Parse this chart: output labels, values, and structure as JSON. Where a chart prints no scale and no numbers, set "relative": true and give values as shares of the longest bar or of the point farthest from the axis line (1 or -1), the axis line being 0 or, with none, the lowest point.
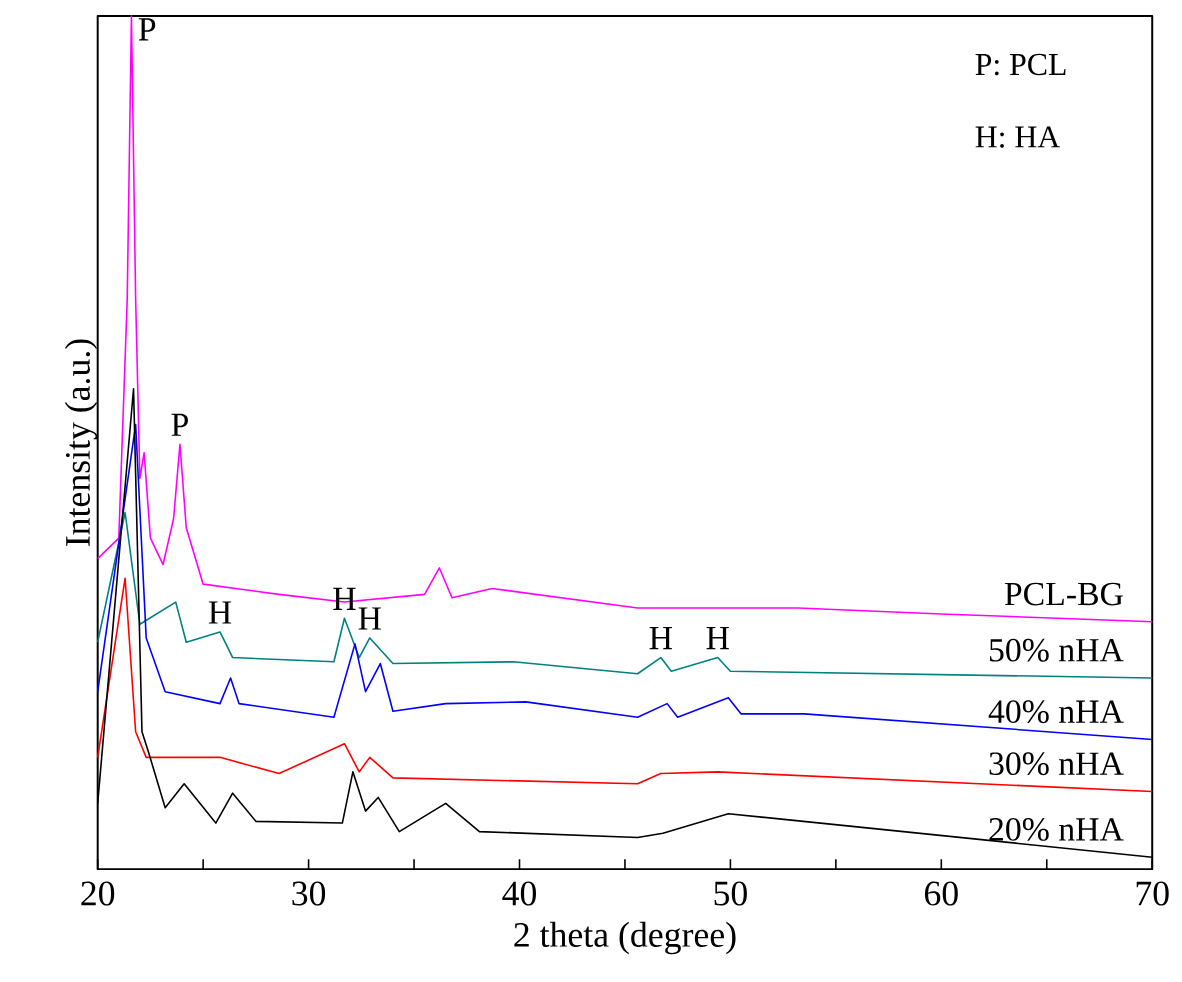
{
  "chart_data": {
    "type": "line",
    "relative": true,
    "xlabel": "2 theta (degree)",
    "ylabel": "Intensity (a.u.)",
    "xlim": [
      20,
      70
    ],
    "xticks": [
      20,
      {
        "value": 25,
        "label": null
      },
      30,
      {
        "value": 35,
        "label": null
      },
      40,
      {
        "value": 45,
        "label": null
      },
      50,
      {
        "value": 55,
        "label": null
      },
      60,
      {
        "value": 65,
        "label": null
      },
      70
    ],
    "tick_labels": "x",
    "grid": false,
    "series": [
      {
        "name": "PCL-BG",
        "color": "#ff00ff",
        "x": [
          20,
          21.0,
          21.4,
          21.6,
          21.8,
          22.0,
          22.2,
          22.5,
          23.1,
          23.6,
          23.9,
          24.2,
          25.0,
          28.6,
          31.7,
          35.5,
          36.2,
          36.8,
          38.7,
          45.6,
          53.2,
          60,
          70
        ],
        "values": [
          0.364,
          0.388,
          0.668,
          1.0,
          0.668,
          0.458,
          0.488,
          0.388,
          0.357,
          0.411,
          0.498,
          0.4,
          0.334,
          0.322,
          0.313,
          0.322,
          0.353,
          0.318,
          0.329,
          0.306,
          0.306,
          0.299,
          0.29
        ]
      },
      {
        "name": "50% nHA",
        "color": "#008080",
        "x": [
          20,
          21.3,
          22.0,
          23.7,
          24.2,
          25.8,
          26.4,
          31.2,
          31.7,
          32.4,
          32.9,
          34.0,
          39.7,
          45.6,
          46.7,
          47.2,
          49.4,
          50.0,
          70
        ],
        "values": [
          0.266,
          0.418,
          0.287,
          0.313,
          0.266,
          0.278,
          0.248,
          0.243,
          0.294,
          0.248,
          0.271,
          0.241,
          0.243,
          0.229,
          0.248,
          0.232,
          0.248,
          0.232,
          0.224
        ]
      },
      {
        "name": "40% nHA",
        "color": "#0000ff",
        "x": [
          20,
          21.8,
          22.3,
          23.2,
          25.8,
          26.3,
          26.7,
          31.2,
          32.2,
          32.7,
          33.4,
          34.0,
          36.5,
          40.3,
          45.6,
          47.0,
          47.5,
          49.9,
          50.5,
          53.5,
          70
        ],
        "values": [
          0.208,
          0.521,
          0.271,
          0.208,
          0.194,
          0.224,
          0.194,
          0.178,
          0.264,
          0.208,
          0.241,
          0.185,
          0.194,
          0.196,
          0.178,
          0.194,
          0.178,
          0.201,
          0.182,
          0.182,
          0.152
        ]
      },
      {
        "name": "30% nHA",
        "color": "#ff0000",
        "x": [
          20,
          21.3,
          21.8,
          22.3,
          25.8,
          28.6,
          31.7,
          32.4,
          32.9,
          34.0,
          45.6,
          46.7,
          49.4,
          70
        ],
        "values": [
          0.131,
          0.341,
          0.161,
          0.131,
          0.131,
          0.112,
          0.147,
          0.114,
          0.131,
          0.107,
          0.1,
          0.112,
          0.114,
          0.091
        ]
      },
      {
        "name": "20% nHA",
        "color": "#000000",
        "x": [
          20,
          21.7,
          22.1,
          22.4,
          23.2,
          24.1,
          25.6,
          26.4,
          27.5,
          31.6,
          32.1,
          32.7,
          33.3,
          34.3,
          36.5,
          38.1,
          45.6,
          46.8,
          49.9,
          70
        ],
        "values": [
          0.077,
          0.563,
          0.161,
          0.138,
          0.072,
          0.1,
          0.054,
          0.089,
          0.056,
          0.054,
          0.114,
          0.068,
          0.084,
          0.044,
          0.077,
          0.044,
          0.037,
          0.042,
          0.065,
          0.014
        ]
      }
    ],
    "annotations": [
      "P: PCL",
      "H: HA",
      {
        "text": "P",
        "x": 21.6,
        "y": 1.0
      },
      {
        "text": "P",
        "x": 23.9,
        "y": 0.498
      },
      {
        "text": "H",
        "x": 25.8,
        "y": 0.278
      },
      {
        "text": "H",
        "x": 31.7,
        "y": 0.294
      },
      {
        "text": "H",
        "x": 32.9,
        "y": 0.271
      },
      {
        "text": "H",
        "x": 46.7,
        "y": 0.248
      },
      {
        "text": "H",
        "x": 49.4,
        "y": 0.248
      }
    ]
  }
}
